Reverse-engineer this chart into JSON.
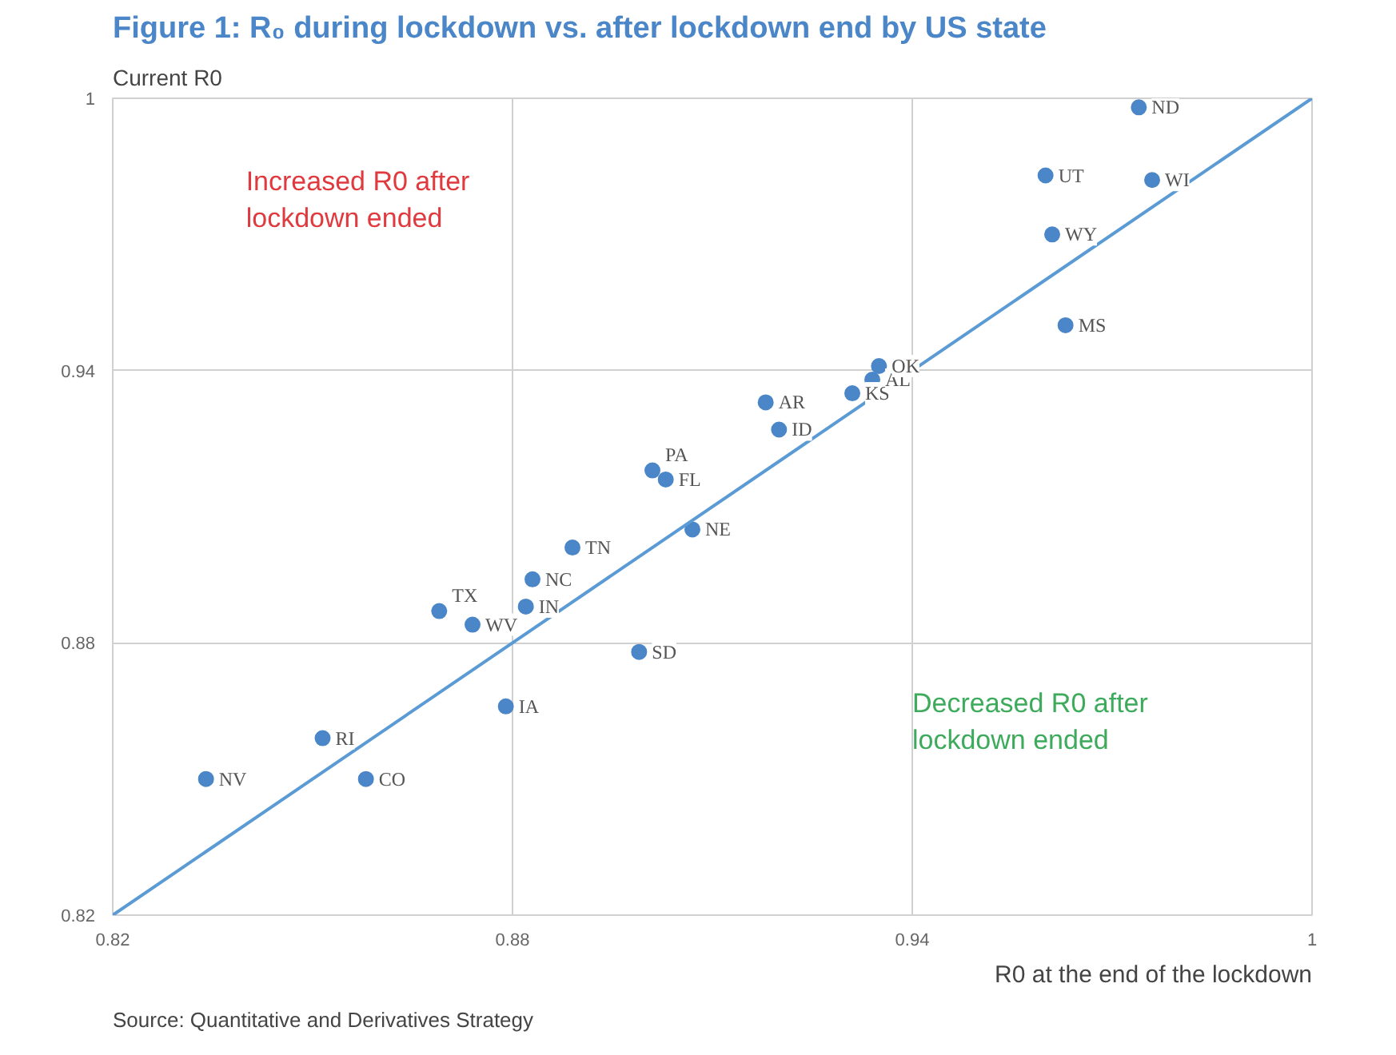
{
  "chart_data": {
    "type": "scatter",
    "title": "Figure 1: R₀ during lockdown vs. after lockdown end by US state",
    "xlabel": "R0 at the end of the lockdown",
    "ylabel": "Current R0",
    "xlim": [
      0.82,
      1
    ],
    "ylim": [
      0.82,
      1
    ],
    "xticks": [
      0.82,
      0.88,
      0.94,
      1
    ],
    "yticks": [
      0.82,
      0.88,
      0.94,
      1
    ],
    "grid": true,
    "series": [
      {
        "type": "scatter",
        "marker": "circle",
        "color": "#4a86c8",
        "x": [
          0.834,
          0.8515,
          0.858,
          0.869,
          0.874,
          0.882,
          0.883,
          0.889,
          0.879,
          0.899,
          0.901,
          0.903,
          0.907,
          0.918,
          0.92,
          0.931,
          0.934,
          0.935,
          0.963,
          0.961,
          0.96,
          0.976,
          0.974
        ],
        "values": [
          0.85,
          0.859,
          0.85,
          0.887,
          0.884,
          0.888,
          0.894,
          0.901,
          0.866,
          0.878,
          0.918,
          0.916,
          0.905,
          0.933,
          0.927,
          0.935,
          0.938,
          0.941,
          0.95,
          0.97,
          0.983,
          0.982,
          0.998
        ],
        "value_labels": [
          "NV",
          "RI",
          "CO",
          "TX",
          "WV",
          "IN",
          "NC",
          "TN",
          "IA",
          "SD",
          "PA",
          "FL",
          "NE",
          "AR",
          "ID",
          "KS",
          "AL",
          "OK",
          "MS",
          "WY",
          "UT",
          "WI",
          "ND"
        ]
      },
      {
        "type": "line",
        "marker": "none",
        "color": "#5b9bd5",
        "x": [
          0.82,
          1
        ],
        "values": [
          0.82,
          1
        ]
      }
    ],
    "annotations": [
      "Increased R0 after lockdown ended",
      "Decreased R0 after lockdown ended",
      "Source: Quantitative and Derivatives Strategy"
    ]
  }
}
